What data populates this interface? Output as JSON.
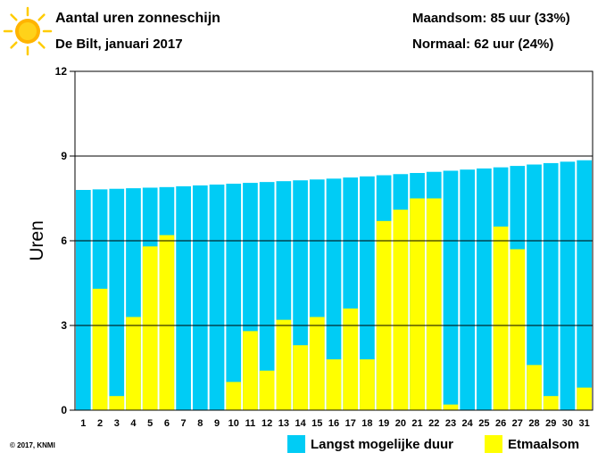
{
  "header": {
    "title": "Aantal uren zonneschijn",
    "subtitle": "De Bilt, januari 2017",
    "month_sum": "Maandsom: 85 uur (33%)",
    "normal": "Normaal: 62 uur (24%)"
  },
  "icons": {
    "sun": "sun-icon"
  },
  "footer": {
    "copyright": "© 2017, KNMI"
  },
  "colors": {
    "max_duration": "#00ccf5",
    "actual": "#ffff00",
    "grid": "#000000"
  },
  "chart_data": {
    "type": "bar",
    "ylabel": "Uren",
    "ylim": [
      0,
      12
    ],
    "yticks": [
      0,
      3,
      6,
      9,
      12
    ],
    "grid": true,
    "legend_position": "bottom",
    "categories": [
      "1",
      "2",
      "3",
      "4",
      "5",
      "6",
      "7",
      "8",
      "9",
      "10",
      "11",
      "12",
      "13",
      "14",
      "15",
      "16",
      "17",
      "18",
      "19",
      "20",
      "21",
      "22",
      "23",
      "24",
      "25",
      "26",
      "27",
      "28",
      "29",
      "30",
      "31"
    ],
    "series": [
      {
        "name": "Langst mogelijke duur",
        "color": "#00ccf5",
        "values": [
          7.8,
          7.82,
          7.84,
          7.86,
          7.88,
          7.9,
          7.93,
          7.96,
          7.99,
          8.02,
          8.05,
          8.08,
          8.11,
          8.14,
          8.17,
          8.2,
          8.24,
          8.28,
          8.32,
          8.36,
          8.4,
          8.44,
          8.48,
          8.52,
          8.56,
          8.6,
          8.65,
          8.7,
          8.75,
          8.8,
          8.85
        ]
      },
      {
        "name": "Etmaalsom",
        "color": "#ffff00",
        "values": [
          0,
          4.3,
          0.5,
          3.3,
          5.8,
          6.2,
          0,
          0,
          0,
          1.0,
          2.8,
          1.4,
          3.2,
          2.3,
          3.3,
          1.8,
          3.6,
          1.8,
          6.7,
          7.1,
          7.5,
          7.5,
          0.2,
          0,
          0,
          6.5,
          5.7,
          1.6,
          0.5,
          0,
          0.8
        ]
      }
    ]
  }
}
